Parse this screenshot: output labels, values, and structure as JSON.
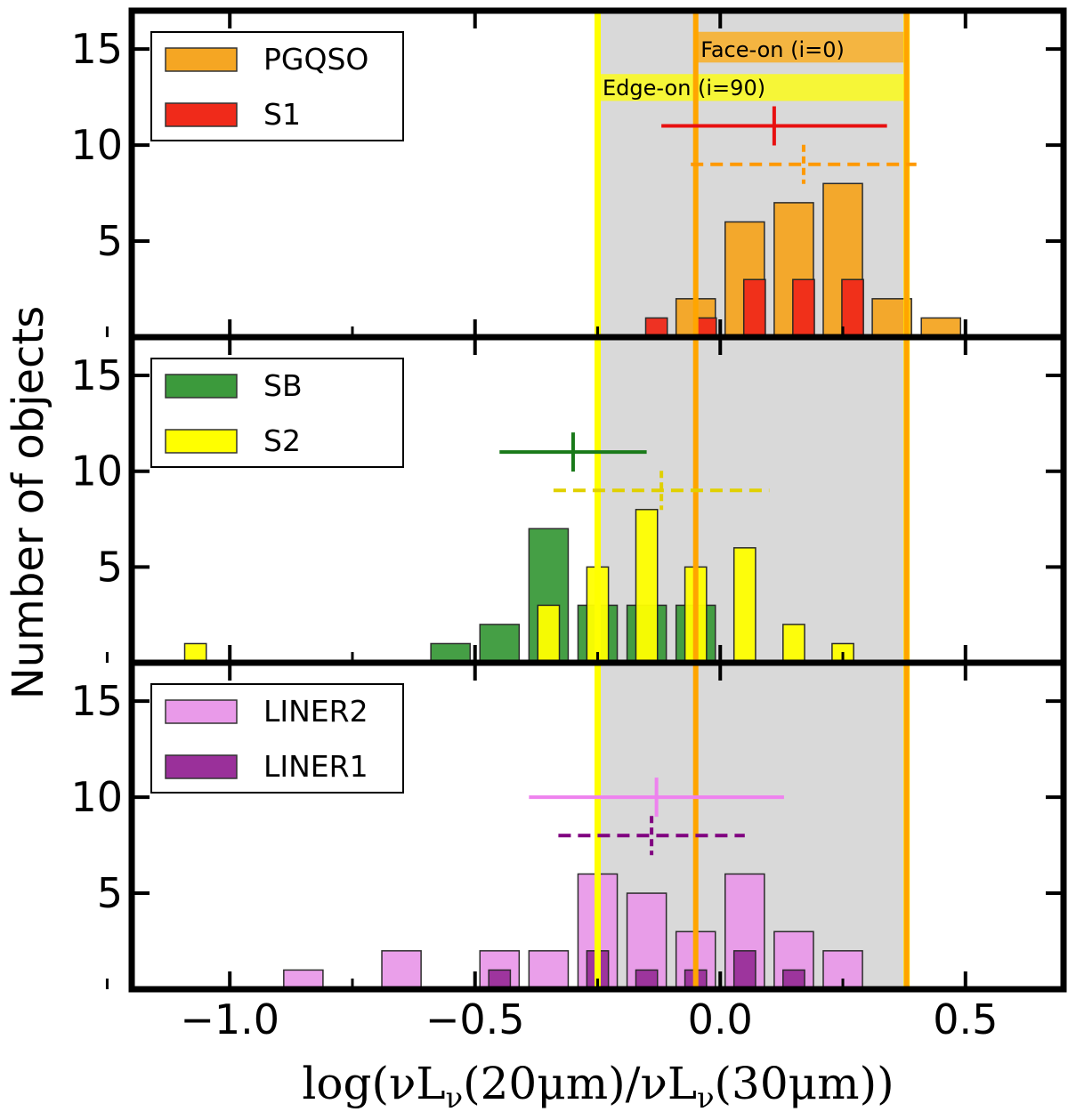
{
  "figure": {
    "ylabel": "Number of objects",
    "xlabel": "log(νL",
    "xlabel_parts": {
      "lead": "log(νL",
      "sub": "ν",
      "mid": "(20μm)/νL",
      "sub2": "ν",
      "tail": "(30μm))"
    },
    "band_labels": {
      "face_on": "Face-on (i=0)",
      "edge_on": "Edge-on (i=90)"
    },
    "colors": {
      "shade": "#d9d9d9",
      "face_on": "#ffa500",
      "edge_on": "#ffff00",
      "axis": "#000000"
    }
  },
  "chart_data": [
    {
      "type": "bar",
      "panel": "top",
      "xlim": [
        -1.2,
        0.7
      ],
      "ylim": [
        0,
        17
      ],
      "yticks": [
        5,
        10,
        15
      ],
      "xticks": [
        -1.0,
        -0.5,
        0.0,
        0.5
      ],
      "xticklabels": [
        "−1.0",
        "−0.5",
        "0.0",
        "0.5"
      ],
      "series": [
        {
          "name": "PGQSO",
          "color": "#f5a623",
          "bins": [
            -0.05,
            0.05,
            0.15,
            0.25,
            0.35,
            0.45
          ],
          "values": [
            2,
            6,
            7,
            8,
            2,
            1
          ]
        },
        {
          "name": "S1",
          "color": "#f02a1a",
          "bins": [
            -0.13,
            -0.03,
            0.07,
            0.17,
            0.27,
            0.37
          ],
          "values": [
            1,
            1,
            3,
            3,
            3,
            0
          ]
        }
      ],
      "markers": [
        {
          "series": "S1",
          "x": 0.11,
          "y": 11,
          "xerr_lo": 0.23,
          "xerr_hi": 0.23,
          "color": "#e81010",
          "dashed": false
        },
        {
          "series": "PGQSO",
          "x": 0.17,
          "y": 9,
          "xerr_lo": 0.23,
          "xerr_hi": 0.23,
          "color": "#ff9900",
          "dashed": true
        }
      ]
    },
    {
      "type": "bar",
      "panel": "middle",
      "xlim": [
        -1.2,
        0.7
      ],
      "ylim": [
        0,
        17
      ],
      "yticks": [
        5,
        10,
        15
      ],
      "xticks": [
        -1.0,
        -0.5,
        0.0,
        0.5
      ],
      "series": [
        {
          "name": "SB",
          "color": "#3c9a3c",
          "bins": [
            -0.55,
            -0.45,
            -0.35,
            -0.25,
            -0.15,
            -0.05
          ],
          "values": [
            1,
            2,
            7,
            3,
            3,
            3
          ]
        },
        {
          "name": "S2",
          "color": "#ffff00",
          "bins": [
            -1.07,
            -0.35,
            -0.25,
            -0.15,
            -0.05,
            0.05,
            0.15,
            0.25
          ],
          "values": [
            1,
            3,
            5,
            8,
            5,
            6,
            2,
            1
          ]
        }
      ],
      "markers": [
        {
          "series": "SB",
          "x": -0.3,
          "y": 11,
          "xerr_lo": 0.15,
          "xerr_hi": 0.15,
          "color": "#1a7a1a",
          "dashed": false
        },
        {
          "series": "S2",
          "x": -0.12,
          "y": 9,
          "xerr_lo": 0.22,
          "xerr_hi": 0.22,
          "color": "#e0d000",
          "dashed": true
        }
      ]
    },
    {
      "type": "bar",
      "panel": "bottom",
      "xlim": [
        -1.2,
        0.7
      ],
      "ylim": [
        0,
        17
      ],
      "yticks": [
        5,
        10,
        15
      ],
      "xticks": [
        -1.0,
        -0.5,
        0.0,
        0.5
      ],
      "series": [
        {
          "name": "LINER2",
          "color": "#e99ae9",
          "bins": [
            -0.85,
            -0.65,
            -0.45,
            -0.35,
            -0.25,
            -0.15,
            -0.05,
            0.05,
            0.15,
            0.25
          ],
          "values": [
            1,
            2,
            2,
            2,
            6,
            5,
            3,
            6,
            3,
            2
          ]
        },
        {
          "name": "LINER1",
          "color": "#9a309a",
          "bins": [
            -0.45,
            -0.25,
            -0.15,
            -0.05,
            0.05,
            0.15
          ],
          "values": [
            1,
            2,
            1,
            1,
            2,
            1
          ]
        }
      ],
      "markers": [
        {
          "series": "LINER2",
          "x": -0.13,
          "y": 10,
          "xerr_lo": 0.26,
          "xerr_hi": 0.26,
          "color": "#ee82ee",
          "dashed": false
        },
        {
          "series": "LINER1",
          "x": -0.14,
          "y": 8,
          "xerr_lo": 0.19,
          "xerr_hi": 0.19,
          "color": "#800080",
          "dashed": true
        }
      ]
    }
  ],
  "bands": {
    "shade_range": [
      -0.25,
      0.38
    ],
    "edge_on_lines": [
      -0.25,
      0.38
    ],
    "face_on_lines": [
      -0.05,
      0.38
    ]
  }
}
